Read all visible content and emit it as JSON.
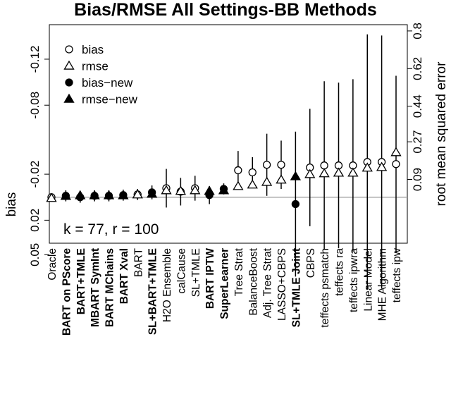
{
  "chart_data": {
    "type": "dotplot",
    "title": "Bias/RMSE All Settings-BB Methods",
    "y_label": "bias",
    "y2_label": "root mean squared error",
    "annotation": "k = 77, r = 100",
    "categories": [
      "Oracle",
      "BART on PScore",
      "BART+TMLE",
      "MBART SymInt",
      "BART MChains",
      "BART Xval",
      "BART",
      "SL+BART+TMLE",
      "H2O Ensemble",
      "calCause",
      "SL+TMLE",
      "BART IPTW",
      "SuperLearner",
      "Tree Strat",
      "BalanceBoost",
      "Adj. Tree Strat",
      "LASSO+CBPS",
      "SL+TMLE Joint",
      "CBPS",
      "teffects psmatch",
      "teffects ra",
      "teffects ipwra",
      "Linear Model",
      "MHE Algorithm",
      "teffects ipw"
    ],
    "ylim": [
      0.04,
      -0.15
    ],
    "yticks": [
      -0.12,
      -0.08,
      -0.02,
      0.02,
      0.05
    ],
    "y2lim": [
      -0.215,
      0.83
    ],
    "y2ticks": [
      0.8,
      0.62,
      0.44,
      0.27,
      0.09
    ],
    "legend": "top-left",
    "series": [
      {
        "name": "bias",
        "marker": "open-circle",
        "color": "#000000",
        "values": [
          0,
          null,
          null,
          null,
          null,
          null,
          -0.0024,
          null,
          -0.0078,
          -0.0048,
          -0.0078,
          null,
          null,
          -0.0234,
          -0.0216,
          -0.0282,
          -0.0282,
          null,
          -0.0258,
          -0.0276,
          -0.0276,
          -0.0276,
          -0.0306,
          -0.0306,
          -0.0288
        ],
        "errors": [
          0.0024,
          null,
          null,
          null,
          null,
          null,
          0.0048,
          null,
          0.0168,
          0.012,
          0.0108,
          null,
          null,
          0.0168,
          0.0132,
          0.027,
          0.021,
          null,
          0.051,
          0.0732,
          0.072,
          0.075,
          0.111,
          0.11,
          0.0768
        ]
      },
      {
        "name": "rmse",
        "marker": "open-triangle",
        "color": "#000000",
        "axis": "y2",
        "values": [
          0,
          null,
          null,
          null,
          null,
          null,
          0.017,
          null,
          0.037,
          0.034,
          0.037,
          null,
          null,
          0.057,
          0.064,
          0.077,
          0.088,
          null,
          0.114,
          0.118,
          0.121,
          0.121,
          0.145,
          0.148,
          0.219
        ]
      },
      {
        "name": "bias−new",
        "marker": "filled-circle",
        "color": "#000000",
        "values": [
          null,
          -0.0012,
          0,
          -0.0012,
          -0.0012,
          -0.0018,
          null,
          -0.0042,
          null,
          null,
          null,
          -0.0018,
          -0.0072,
          null,
          null,
          null,
          null,
          0.006,
          null,
          null,
          null,
          null,
          null,
          null,
          null
        ],
        "errors": [
          null,
          0.0048,
          0.0048,
          0.0048,
          0.0048,
          0.0048,
          null,
          0.006,
          null,
          null,
          null,
          0.0078,
          0.0048,
          null,
          null,
          null,
          null,
          0.063,
          null,
          null,
          null,
          null,
          null,
          null,
          null
        ]
      },
      {
        "name": "rmse−new",
        "marker": "filled-triangle",
        "color": "#000000",
        "axis": "y2",
        "values": [
          null,
          0.01,
          0.013,
          0.013,
          0.013,
          0.013,
          null,
          0.02,
          null,
          null,
          null,
          0.034,
          0.037,
          null,
          null,
          null,
          null,
          0.104,
          null,
          null,
          null,
          null,
          null,
          null,
          null
        ]
      }
    ]
  }
}
